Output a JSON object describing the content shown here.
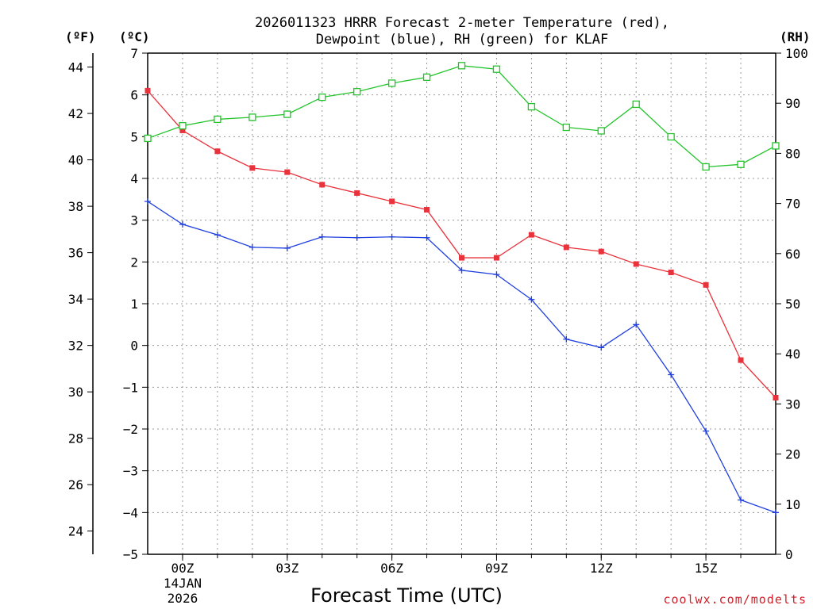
{
  "chart_data": {
    "type": "line",
    "title_line1": "2026011323 HRRR Forecast 2-meter Temperature (red),",
    "title_line2": "Dewpoint (blue), RH (green) for KLAF",
    "xlabel": "Forecast Time (UTC)",
    "credit": "coolwx.com/modelts",
    "units": {
      "fahrenheit": "(ºF)",
      "celsius": "(ºC)",
      "rh": "(RH)"
    },
    "x": [
      -1,
      0,
      1,
      2,
      3,
      4,
      5,
      6,
      7,
      8,
      9,
      10,
      11,
      12,
      13,
      14,
      15,
      16,
      17
    ],
    "x_ticks": [
      {
        "x": 0,
        "label": "00Z",
        "sub1": "14JAN",
        "sub2": "2026"
      },
      {
        "x": 3,
        "label": "03Z"
      },
      {
        "x": 6,
        "label": "06Z"
      },
      {
        "x": 9,
        "label": "09Z"
      },
      {
        "x": 12,
        "label": "12Z"
      },
      {
        "x": 15,
        "label": "15Z"
      }
    ],
    "xlim": [
      -1,
      17
    ],
    "ylim_c": [
      -5,
      7
    ],
    "ylim_rh": [
      0,
      100
    ],
    "celsius_ticks": [
      -5,
      -4,
      -3,
      -2,
      -1,
      0,
      1,
      2,
      3,
      4,
      5,
      6,
      7
    ],
    "fahrenheit_ticks": [
      24,
      26,
      28,
      30,
      32,
      34,
      36,
      38,
      40,
      42,
      44
    ],
    "rh_ticks": [
      0,
      10,
      20,
      30,
      40,
      50,
      60,
      70,
      80,
      90,
      100
    ],
    "series": [
      {
        "name": "Temperature",
        "axis": "celsius",
        "color": "#e8323c",
        "marker": "filled-square",
        "values": [
          6.1,
          5.15,
          4.65,
          4.25,
          4.15,
          3.85,
          3.65,
          3.45,
          3.25,
          2.1,
          2.1,
          2.65,
          2.35,
          2.25,
          1.95,
          1.75,
          1.45,
          -0.35,
          -1.25
        ]
      },
      {
        "name": "Dewpoint",
        "axis": "celsius",
        "color": "#1f3fe0",
        "marker": "plus",
        "values": [
          3.45,
          2.9,
          2.65,
          2.35,
          2.33,
          2.6,
          2.58,
          2.6,
          2.58,
          1.8,
          1.7,
          1.1,
          0.15,
          -0.05,
          0.5,
          -0.7,
          -2.05,
          -3.7,
          -4.0
        ]
      },
      {
        "name": "RH",
        "axis": "rh",
        "color": "#22c42a",
        "marker": "open-square",
        "values": [
          83,
          85.5,
          86.8,
          87.2,
          87.8,
          91.2,
          92.3,
          94,
          95.2,
          97.5,
          96.8,
          89.3,
          85.2,
          84.5,
          89.8,
          83.3,
          77.3,
          77.8,
          81.5
        ]
      }
    ]
  }
}
